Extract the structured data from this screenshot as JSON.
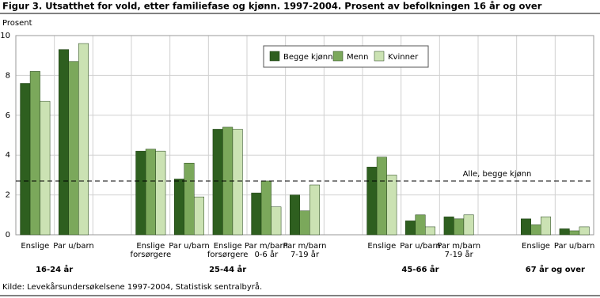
{
  "chart_data": {
    "type": "bar",
    "title": "Figur 3. Utsatthet for vold, etter familiefase og kjønn. 1997-2004. Prosent av befolkningen 16 år og over",
    "y_label": "Prosent",
    "categories": [
      "Enslige",
      "Par u/barn",
      null,
      "Enslige\nforsørgere",
      "Par u/barn",
      "Enslige\nforsørgere",
      "Par m/barn\n0-6 år",
      "Par m/barn\n7-19 år",
      null,
      "Enslige",
      "Par u/barn",
      "Par m/barn\n7-19 år",
      null,
      "Enslige",
      "Par u/barn"
    ],
    "groups": [
      "16-24 år",
      "25-44 år",
      "45-66 år",
      "67 år og over"
    ],
    "series": [
      {
        "name": "Begge kjønn",
        "color": "#2e5f1f",
        "values": [
          7.6,
          9.3,
          null,
          4.2,
          2.8,
          5.3,
          2.1,
          2.0,
          null,
          3.4,
          0.7,
          0.9,
          null,
          0.8,
          0.3
        ]
      },
      {
        "name": "Menn",
        "color": "#7ba85b",
        "values": [
          8.2,
          8.7,
          null,
          4.3,
          3.6,
          5.4,
          2.7,
          1.2,
          null,
          3.9,
          1.0,
          0.8,
          null,
          0.5,
          0.2
        ]
      },
      {
        "name": "Kvinner",
        "color": "#cbe2b3",
        "values": [
          6.7,
          9.6,
          null,
          4.2,
          1.9,
          5.3,
          1.4,
          2.5,
          null,
          3.0,
          0.4,
          1.0,
          null,
          0.9,
          0.4
        ]
      }
    ],
    "reference_line": {
      "value": 2.7,
      "label": "Alle, begge kjønn"
    },
    "ylim": [
      0,
      10
    ],
    "yticks": [
      0,
      2,
      4,
      6,
      8,
      10
    ],
    "grid": true,
    "legend": "top",
    "source": "Kilde: Levekårsundersøkelsene 1997-2004, Statistisk sentralbyrå."
  }
}
